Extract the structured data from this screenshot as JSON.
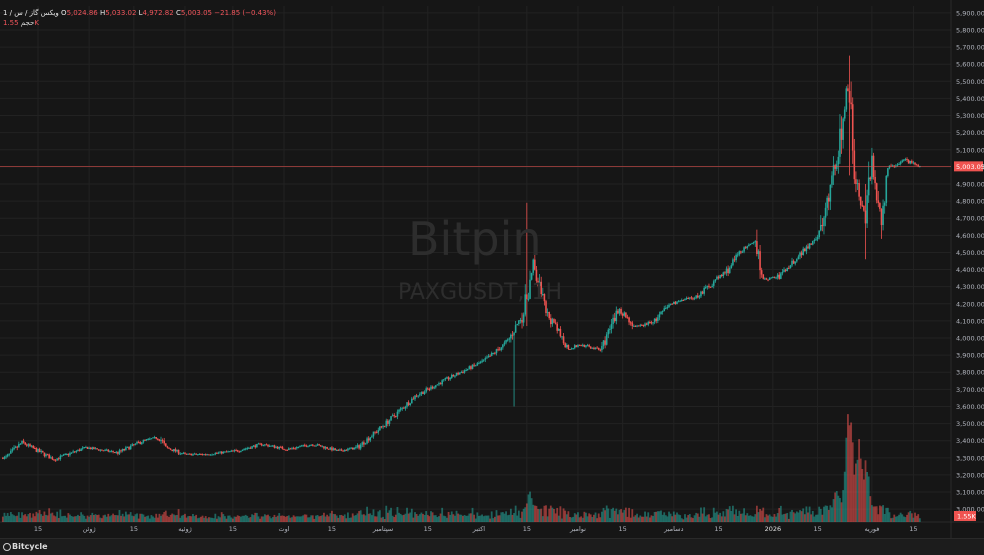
{
  "brand": "Bitpin",
  "symbol_watermark": "PAXGUSDT, 1H",
  "legend": {
    "series_info": "1 / ویکس گاز / س",
    "o_label": "O",
    "o_value": "5,024.86",
    "h_label": "H",
    "h_value": "5,033.02",
    "l_label": "L",
    "l_value": "4,972.82",
    "c_label": "C",
    "c_value": "5,003.05",
    "change": "−21.85 (−0.43%)",
    "volume_label": "حجم",
    "volume_value": "1.55K"
  },
  "last_price_label": "5,003.05",
  "last_volume_label": "1.55K",
  "footer": {
    "brand": "Bitcycle"
  },
  "colors": {
    "up": "#26a69a",
    "down": "#ef5350",
    "background": "#161616",
    "grid": "#222222",
    "text": "#b2b5be"
  },
  "chart_data": {
    "type": "candlestick",
    "y_ticks": [
      "5,900.00",
      "5,800.00",
      "5,700.00",
      "5,600.00",
      "5,500.00",
      "5,400.00",
      "5,300.00",
      "5,200.00",
      "5,100.00",
      "5,000.00",
      "4,900.00",
      "4,800.00",
      "4,700.00",
      "4,600.00",
      "4,500.00",
      "4,400.00",
      "4,300.00",
      "4,200.00",
      "4,100.00",
      "4,000.00",
      "3,900.00",
      "3,800.00",
      "3,700.00",
      "3,600.00",
      "3,500.00",
      "3,400.00",
      "3,300.00",
      "3,200.00",
      "3,100.00",
      "3,000.00"
    ],
    "ylim": [
      2925,
      5940
    ],
    "x_ticks": [
      {
        "label": "15",
        "day": 0
      },
      {
        "label": "ژوئن",
        "day": 16
      },
      {
        "label": "15",
        "day": 30
      },
      {
        "label": "ژوئیه",
        "day": 46
      },
      {
        "label": "15",
        "day": 61
      },
      {
        "label": "اوت",
        "day": 77
      },
      {
        "label": "15",
        "day": 92
      },
      {
        "label": "سپتامبر",
        "day": 108
      },
      {
        "label": "15",
        "day": 122
      },
      {
        "label": "اکتبر",
        "day": 138
      },
      {
        "label": "15",
        "day": 153
      },
      {
        "label": "نوامبر",
        "day": 169
      },
      {
        "label": "15",
        "day": 183
      },
      {
        "label": "دسامبر",
        "day": 199
      },
      {
        "label": "15",
        "day": 213
      },
      {
        "label": "2026",
        "day": 230
      },
      {
        "label": "15",
        "day": 244
      },
      {
        "label": "فوریه",
        "day": 261
      },
      {
        "label": "15",
        "day": 274
      }
    ],
    "path": [
      [
        -10,
        3300
      ],
      [
        -5,
        3390
      ],
      [
        5,
        3290
      ],
      [
        15,
        3360
      ],
      [
        25,
        3330
      ],
      [
        33,
        3400
      ],
      [
        38,
        3420
      ],
      [
        40,
        3360
      ],
      [
        46,
        3320
      ],
      [
        52,
        3320
      ],
      [
        62,
        3340
      ],
      [
        70,
        3380
      ],
      [
        78,
        3350
      ],
      [
        86,
        3380
      ],
      [
        94,
        3340
      ],
      [
        100,
        3360
      ],
      [
        110,
        3520
      ],
      [
        118,
        3660
      ],
      [
        128,
        3760
      ],
      [
        140,
        3870
      ],
      [
        147,
        3980
      ],
      [
        152,
        4150
      ],
      [
        155,
        4420
      ],
      [
        159,
        4150
      ],
      [
        162,
        4060
      ],
      [
        166,
        3940
      ],
      [
        170,
        3960
      ],
      [
        176,
        3930
      ],
      [
        182,
        4170
      ],
      [
        187,
        4060
      ],
      [
        193,
        4100
      ],
      [
        198,
        4200
      ],
      [
        206,
        4240
      ],
      [
        216,
        4400
      ],
      [
        220,
        4510
      ],
      [
        225,
        4560
      ],
      [
        227,
        4340
      ],
      [
        232,
        4360
      ],
      [
        240,
        4520
      ],
      [
        245,
        4620
      ],
      [
        251,
        5150
      ],
      [
        254,
        5560
      ],
      [
        255,
        5080
      ],
      [
        257,
        4800
      ],
      [
        259,
        4700
      ],
      [
        261,
        5000
      ],
      [
        264,
        4700
      ],
      [
        266,
        4990
      ],
      [
        271,
        5040
      ],
      [
        276,
        5003
      ]
    ],
    "spikes": [
      {
        "day": 153,
        "high": 4790,
        "low": 4070
      },
      {
        "day": 149,
        "high": 4020,
        "low": 3600
      },
      {
        "day": 254,
        "high": 5650,
        "low": 4950
      },
      {
        "day": 259,
        "high": 4900,
        "low": 4460
      }
    ],
    "volume": {
      "max_label": "1.55K",
      "peaks": [
        {
          "day": 154,
          "rel": 0.26
        },
        {
          "day": 254,
          "rel": 1.0
        },
        {
          "day": 257,
          "rel": 0.75
        },
        {
          "day": 259,
          "rel": 0.55
        },
        {
          "day": 250,
          "rel": 0.3
        }
      ]
    }
  }
}
